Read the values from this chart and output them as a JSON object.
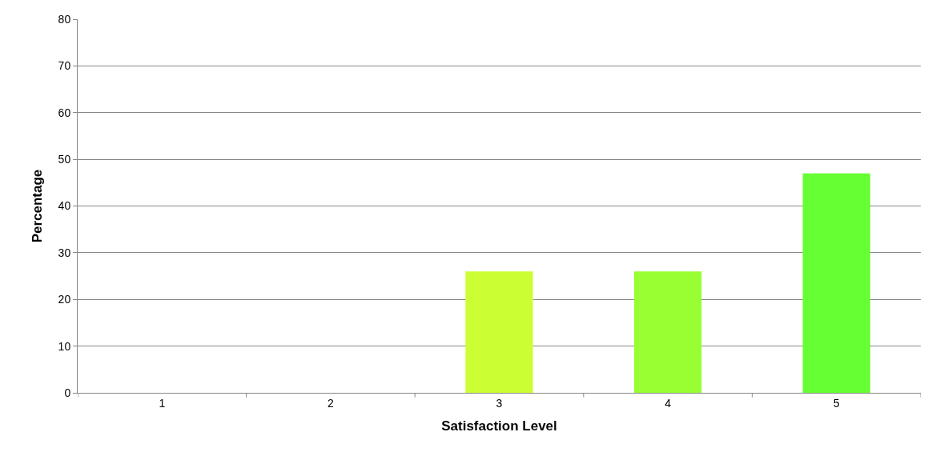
{
  "chart_data": {
    "type": "bar",
    "xlabel": "Satisfaction Level",
    "ylabel": "Percentage",
    "categories": [
      "1",
      "2",
      "3",
      "4",
      "5"
    ],
    "values": [
      0,
      0,
      26,
      26,
      47
    ],
    "colors": [
      null,
      null,
      "#ccff33",
      "#99ff33",
      "#66ff33"
    ],
    "ylim": [
      0,
      80
    ],
    "yticks": [
      0,
      10,
      20,
      30,
      40,
      50,
      60,
      70,
      80
    ],
    "grid": "y"
  }
}
